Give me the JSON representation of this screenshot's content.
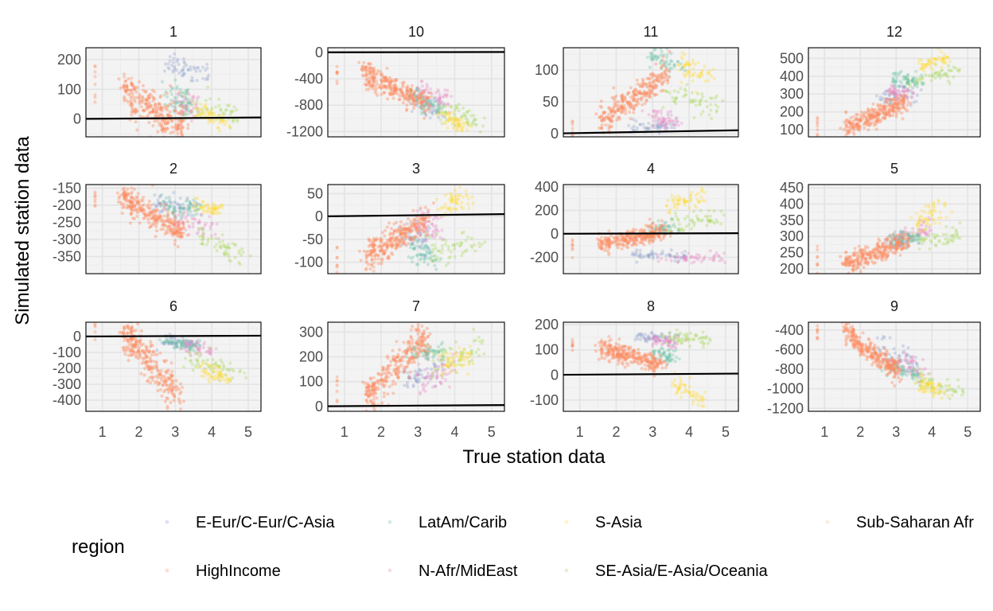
{
  "chart_data": {
    "type": "scatter",
    "xlabel": "True station data",
    "ylabel": "Simulated station data",
    "x_ticks": [
      1,
      2,
      3,
      4,
      5
    ],
    "xlim": [
      0.55,
      5.35
    ],
    "legend": {
      "title": "region",
      "placement": "bottom",
      "entries": [
        {
          "name": "E-Eur/C-Eur/C-Asia",
          "color": "#8da0cb"
        },
        {
          "name": "LatAm/Carib",
          "color": "#66c2a5"
        },
        {
          "name": "S-Asia",
          "color": "#ffd92f"
        },
        {
          "name": "Sub-Saharan Afr",
          "color": "#e5c494"
        },
        {
          "name": "HighIncome",
          "color": "#fc8d62"
        },
        {
          "name": "N-Afr/MidEast",
          "color": "#e78ac3"
        },
        {
          "name": "SE-Asia/E-Asia/Oceania",
          "color": "#a6d854"
        }
      ]
    },
    "panels": [
      {
        "label": "1",
        "ylim": [
          -60,
          240
        ],
        "ticks": [
          0,
          100,
          200
        ],
        "ref": [
          0,
          1
        ],
        "clusters": {
          "HighIncome": [
            [
              1.6,
              3.2
            ],
            [
              95,
              -30
            ],
            35
          ],
          "E-Eur/C-Eur/C-Asia": [
            [
              2.6,
              3.9
            ],
            [
              195,
              150
            ],
            20
          ],
          "LatAm/Carib": [
            [
              2.8,
              3.4
            ],
            [
              100,
              40
            ],
            25
          ],
          "N-Afr/MidEast": [
            [
              3.0,
              3.6
            ],
            [
              60,
              30
            ],
            25
          ],
          "SE-Asia/E-Asia/Oceania": [
            [
              3.2,
              4.7
            ],
            [
              50,
              10
            ],
            20
          ],
          "S-Asia": [
            [
              3.6,
              4.4
            ],
            [
              30,
              -20
            ],
            15
          ]
        }
      },
      {
        "label": "10",
        "ylim": [
          -1280,
          70
        ],
        "ticks": [
          0,
          -400,
          -800,
          -1200
        ],
        "ref": [
          0,
          1
        ],
        "clusters": {
          "HighIncome": [
            [
              1.5,
              3.3
            ],
            [
              -300,
              -820
            ],
            90
          ],
          "E-Eur/C-Eur/C-Asia": [
            [
              2.8,
              3.7
            ],
            [
              -700,
              -900
            ],
            80
          ],
          "LatAm/Carib": [
            [
              2.8,
              3.5
            ],
            [
              -650,
              -850
            ],
            80
          ],
          "N-Afr/MidEast": [
            [
              3.0,
              3.9
            ],
            [
              -550,
              -800
            ],
            80
          ],
          "SE-Asia/E-Asia/Oceania": [
            [
              3.5,
              4.6
            ],
            [
              -850,
              -1050
            ],
            80
          ],
          "S-Asia": [
            [
              3.7,
              4.3
            ],
            [
              -950,
              -1150
            ],
            60
          ]
        }
      },
      {
        "label": "11",
        "ylim": [
          -5,
          135
        ],
        "ticks": [
          0,
          50,
          100
        ],
        "ref": [
          0,
          1
        ],
        "clusters": {
          "HighIncome": [
            [
              1.6,
              3.4
            ],
            [
              20,
              95
            ],
            12
          ],
          "E-Eur/C-Eur/C-Asia": [
            [
              2.4,
              3.6
            ],
            [
              8,
              15
            ],
            6
          ],
          "LatAm/Carib": [
            [
              2.9,
              3.8
            ],
            [
              125,
              100
            ],
            8
          ],
          "N-Afr/MidEast": [
            [
              2.9,
              3.6
            ],
            [
              30,
              15
            ],
            8
          ],
          "SE-Asia/E-Asia/Oceania": [
            [
              3.4,
              4.8
            ],
            [
              60,
              40
            ],
            10
          ],
          "S-Asia": [
            [
              3.7,
              4.6
            ],
            [
              110,
              90
            ],
            10
          ]
        }
      },
      {
        "label": "12",
        "ylim": [
          60,
          560
        ],
        "ticks": [
          100,
          200,
          300,
          400,
          500
        ],
        "ref": [
          0,
          1
        ],
        "clusters": {
          "HighIncome": [
            [
              1.6,
              3.3
            ],
            [
              110,
              260
            ],
            30
          ],
          "E-Eur/C-Eur/C-Asia": [
            [
              2.6,
              3.5
            ],
            [
              270,
              310
            ],
            25
          ],
          "LatAm/Carib": [
            [
              2.9,
              3.7
            ],
            [
              380,
              380
            ],
            20
          ],
          "N-Afr/MidEast": [
            [
              2.8,
              3.4
            ],
            [
              320,
              290
            ],
            25
          ],
          "SE-Asia/E-Asia/Oceania": [
            [
              3.3,
              4.8
            ],
            [
              370,
              430
            ],
            20
          ],
          "S-Asia": [
            [
              3.7,
              4.5
            ],
            [
              460,
              500
            ],
            20
          ]
        }
      },
      {
        "label": "2",
        "ylim": [
          -400,
          -140
        ],
        "ticks": [
          -150,
          -200,
          -250,
          -300,
          -350
        ],
        "ref": null,
        "clusters": {
          "HighIncome": [
            [
              1.5,
              3.2
            ],
            [
              -175,
              -280
            ],
            18
          ],
          "E-Eur/C-Eur/C-Asia": [
            [
              2.4,
              3.6
            ],
            [
              -190,
              -210
            ],
            15
          ],
          "LatAm/Carib": [
            [
              2.6,
              3.7
            ],
            [
              -205,
              -215
            ],
            12
          ],
          "N-Afr/MidEast": [
            [
              3.0,
              4.2
            ],
            [
              -240,
              -270
            ],
            18
          ],
          "SE-Asia/E-Asia/Oceania": [
            [
              3.6,
              4.9
            ],
            [
              -290,
              -350
            ],
            18
          ],
          "S-Asia": [
            [
              3.6,
              4.3
            ],
            [
              -200,
              -215
            ],
            10
          ]
        }
      },
      {
        "label": "3",
        "ylim": [
          -125,
          70
        ],
        "ticks": [
          50,
          0,
          -50,
          -100
        ],
        "ref": [
          0,
          1
        ],
        "clusters": {
          "HighIncome": [
            [
              1.6,
              3.3
            ],
            [
              -90,
              0
            ],
            15
          ],
          "E-Eur/C-Eur/C-Asia": [
            [
              2.5,
              3.3
            ],
            [
              -40,
              -60
            ],
            15
          ],
          "LatAm/Carib": [
            [
              2.8,
              3.6
            ],
            [
              -75,
              -85
            ],
            15
          ],
          "N-Afr/MidEast": [
            [
              2.9,
              3.6
            ],
            [
              -10,
              -30
            ],
            15
          ],
          "SE-Asia/E-Asia/Oceania": [
            [
              3.2,
              4.8
            ],
            [
              -70,
              -65
            ],
            15
          ],
          "S-Asia": [
            [
              3.6,
              4.4
            ],
            [
              20,
              40
            ],
            12
          ]
        }
      },
      {
        "label": "4",
        "ylim": [
          -340,
          420
        ],
        "ticks": [
          400,
          200,
          0,
          -200
        ],
        "ref": [
          0,
          1
        ],
        "clusters": {
          "HighIncome": [
            [
              1.6,
              3.3
            ],
            [
              -90,
              20
            ],
            35
          ],
          "E-Eur/C-Eur/C-Asia": [
            [
              2.5,
              3.9
            ],
            [
              -180,
              -200
            ],
            20
          ],
          "LatAm/Carib": [
            [
              2.9,
              3.6
            ],
            [
              20,
              60
            ],
            30
          ],
          "N-Afr/MidEast": [
            [
              3.1,
              4.9
            ],
            [
              -200,
              -210
            ],
            20
          ],
          "SE-Asia/E-Asia/Oceania": [
            [
              3.4,
              4.9
            ],
            [
              80,
              140
            ],
            40
          ],
          "S-Asia": [
            [
              3.5,
              4.4
            ],
            [
              250,
              330
            ],
            40
          ]
        }
      },
      {
        "label": "5",
        "ylim": [
          185,
          460
        ],
        "ticks": [
          200,
          250,
          300,
          350,
          400,
          450
        ],
        "ref": null,
        "clusters": {
          "HighIncome": [
            [
              1.6,
              3.3
            ],
            [
              218,
              285
            ],
            15
          ],
          "E-Eur/C-Eur/C-Asia": [
            [
              2.8,
              3.5
            ],
            [
              280,
              300
            ],
            12
          ],
          "LatAm/Carib": [
            [
              2.8,
              3.7
            ],
            [
              280,
              305
            ],
            12
          ],
          "N-Afr/MidEast": [
            [
              3.1,
              3.9
            ],
            [
              290,
              330
            ],
            15
          ],
          "SE-Asia/E-Asia/Oceania": [
            [
              3.4,
              4.9
            ],
            [
              280,
              300
            ],
            18
          ],
          "S-Asia": [
            [
              3.5,
              4.3
            ],
            [
              340,
              390
            ],
            20
          ]
        }
      },
      {
        "label": "6",
        "ylim": [
          -470,
          90
        ],
        "ticks": [
          0,
          -100,
          -200,
          -300,
          -400
        ],
        "ref": [
          0,
          1
        ],
        "clusters": {
          "HighIncome": [
            [
              1.6,
              3.1
            ],
            [
              20,
              -380
            ],
            60
          ],
          "E-Eur/C-Eur/C-Asia": [
            [
              2.7,
              3.5
            ],
            [
              -30,
              -50
            ],
            20
          ],
          "LatAm/Carib": [
            [
              2.7,
              3.6
            ],
            [
              -40,
              -60
            ],
            18
          ],
          "N-Afr/MidEast": [
            [
              3.2,
              4.0
            ],
            [
              -50,
              -90
            ],
            25
          ],
          "SE-Asia/E-Asia/Oceania": [
            [
              3.4,
              4.9
            ],
            [
              -150,
              -220
            ],
            35
          ],
          "S-Asia": [
            [
              3.7,
              4.4
            ],
            [
              -210,
              -260
            ],
            25
          ]
        }
      },
      {
        "label": "7",
        "ylim": [
          -20,
          340
        ],
        "ticks": [
          0,
          100,
          200,
          300
        ],
        "ref": [
          0,
          1
        ],
        "clusters": {
          "HighIncome": [
            [
              1.6,
              3.2
            ],
            [
              40,
              290
            ],
            35
          ],
          "E-Eur/C-Eur/C-Asia": [
            [
              2.6,
              3.6
            ],
            [
              110,
              160
            ],
            30
          ],
          "LatAm/Carib": [
            [
              2.8,
              3.7
            ],
            [
              215,
              230
            ],
            15
          ],
          "N-Afr/MidEast": [
            [
              3.0,
              4.0
            ],
            [
              100,
              160
            ],
            30
          ],
          "SE-Asia/E-Asia/Oceania": [
            [
              3.3,
              4.8
            ],
            [
              180,
              240
            ],
            30
          ],
          "S-Asia": [
            [
              3.6,
              4.4
            ],
            [
              160,
              190
            ],
            25
          ]
        }
      },
      {
        "label": "8",
        "ylim": [
          -145,
          210
        ],
        "ticks": [
          200,
          100,
          0,
          -100
        ],
        "ref": [
          0,
          1
        ],
        "clusters": {
          "HighIncome": [
            [
              1.6,
              3.2
            ],
            [
              105,
              40
            ],
            18
          ],
          "E-Eur/C-Eur/C-Asia": [
            [
              2.6,
              3.7
            ],
            [
              155,
              150
            ],
            10
          ],
          "LatAm/Carib": [
            [
              2.9,
              3.6
            ],
            [
              90,
              75
            ],
            15
          ],
          "N-Afr/MidEast": [
            [
              3.0,
              3.7
            ],
            [
              140,
              120
            ],
            12
          ],
          "SE-Asia/E-Asia/Oceania": [
            [
              3.3,
              4.6
            ],
            [
              150,
              140
            ],
            12
          ],
          "S-Asia": [
            [
              3.6,
              4.4
            ],
            [
              -20,
              -110
            ],
            20
          ]
        }
      },
      {
        "label": "9",
        "ylim": [
          -1230,
          -320
        ],
        "ticks": [
          -400,
          -600,
          -800,
          -1000,
          -1200
        ],
        "ref": null,
        "clusters": {
          "HighIncome": [
            [
              1.6,
              3.1
            ],
            [
              -430,
              -840
            ],
            60
          ],
          "E-Eur/C-Eur/C-Asia": [
            [
              2.4,
              3.6
            ],
            [
              -560,
              -760
            ],
            70
          ],
          "LatAm/Carib": [
            [
              2.8,
              3.6
            ],
            [
              -790,
              -850
            ],
            30
          ],
          "N-Afr/MidEast": [
            [
              2.9,
              3.8
            ],
            [
              -700,
              -860
            ],
            60
          ],
          "SE-Asia/E-Asia/Oceania": [
            [
              3.5,
              4.9
            ],
            [
              -880,
              -1050
            ],
            50
          ],
          "S-Asia": [
            [
              3.6,
              4.4
            ],
            [
              -960,
              -1020
            ],
            40
          ]
        }
      }
    ]
  }
}
